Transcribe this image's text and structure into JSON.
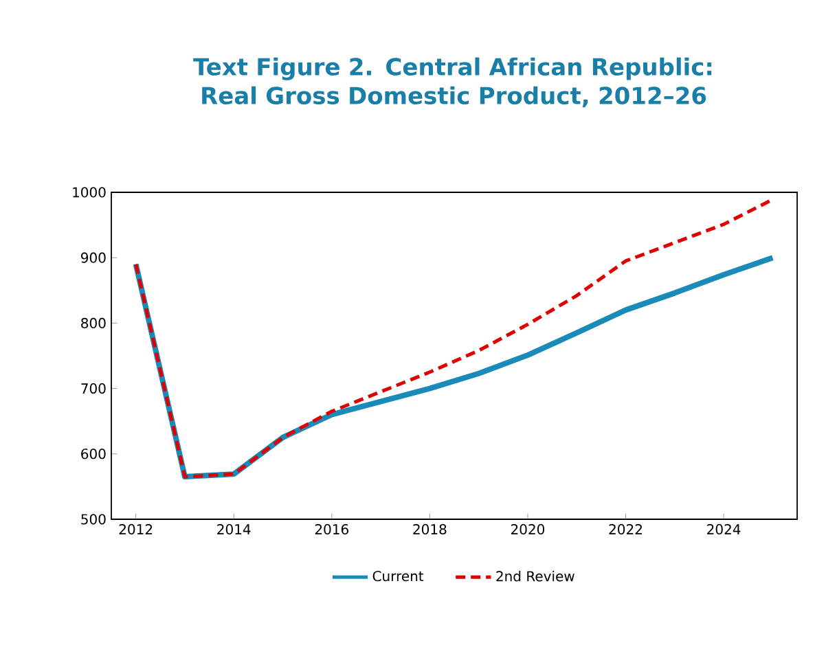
{
  "chart_data": {
    "type": "line",
    "title": "Text Figure 2. Central African Republic: Real Gross Domestic Product, 2012–26",
    "x": [
      2012,
      2013,
      2014,
      2015,
      2016,
      2017,
      2018,
      2019,
      2020,
      2021,
      2022,
      2023,
      2024,
      2025
    ],
    "series": [
      {
        "name": "Current",
        "color": "#1a8ab8",
        "line_style": "solid",
        "values": [
          890,
          565,
          569,
          625,
          660,
          680,
          700,
          723,
          751,
          785,
          820,
          846,
          874,
          900
        ]
      },
      {
        "name": "2nd Review",
        "color": "#e00000",
        "line_style": "dashed",
        "values": [
          890,
          565,
          569,
          625,
          665,
          695,
          725,
          758,
          798,
          842,
          895,
          923,
          951,
          989
        ]
      }
    ],
    "xlim": [
      2011.5,
      2025.5
    ],
    "xticks": [
      2012,
      2014,
      2016,
      2018,
      2020,
      2022,
      2024
    ],
    "ylim": [
      500,
      1000
    ],
    "yticks": [
      500,
      600,
      700,
      800,
      900,
      1000
    ],
    "grid": false,
    "legend": "bottom",
    "marker": "none"
  }
}
